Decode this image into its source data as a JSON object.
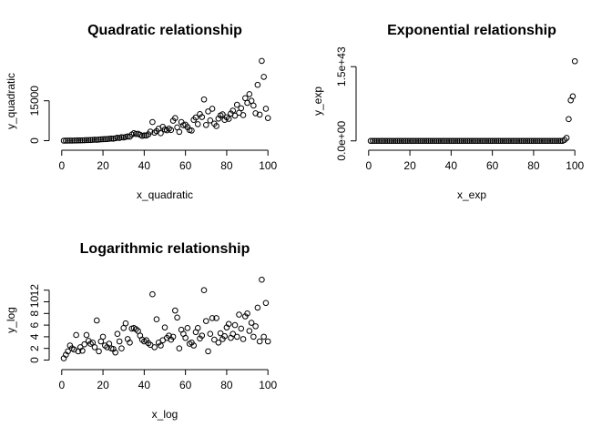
{
  "chart_data": [
    {
      "type": "scatter",
      "title": "Quadratic relationship",
      "xlabel": "x_quadratic",
      "ylabel": "y_quadratic",
      "x": [
        1,
        2,
        3,
        4,
        5,
        6,
        7,
        8,
        9,
        10,
        11,
        12,
        13,
        14,
        15,
        16,
        17,
        18,
        19,
        20,
        21,
        22,
        23,
        24,
        25,
        26,
        27,
        28,
        29,
        30,
        31,
        32,
        33,
        34,
        35,
        36,
        37,
        38,
        39,
        40,
        41,
        42,
        43,
        44,
        45,
        46,
        47,
        48,
        49,
        50,
        51,
        52,
        53,
        54,
        55,
        56,
        57,
        58,
        59,
        60,
        61,
        62,
        63,
        64,
        65,
        66,
        67,
        68,
        69,
        70,
        71,
        72,
        73,
        74,
        75,
        76,
        77,
        78,
        79,
        80,
        81,
        82,
        83,
        84,
        85,
        86,
        87,
        88,
        89,
        90,
        91,
        92,
        93,
        94,
        95,
        96,
        97,
        98,
        99,
        100
      ],
      "values": [
        1,
        5,
        12,
        20,
        30,
        40,
        60,
        90,
        100,
        130,
        150,
        200,
        210,
        250,
        300,
        350,
        330,
        420,
        500,
        520,
        560,
        600,
        700,
        800,
        750,
        900,
        1100,
        1000,
        1300,
        1200,
        1400,
        1600,
        1500,
        2300,
        2800,
        2500,
        2600,
        2200,
        1800,
        2000,
        1900,
        2400,
        3400,
        7000,
        3000,
        3600,
        4500,
        2800,
        5200,
        4200,
        3900,
        4500,
        4000,
        7500,
        8500,
        5000,
        3300,
        7000,
        5800,
        6000,
        5100,
        4000,
        3800,
        7800,
        8700,
        6200,
        10000,
        8900,
        15500,
        5900,
        11000,
        7600,
        12000,
        6400,
        5500,
        8300,
        9500,
        9900,
        7800,
        8800,
        8200,
        10200,
        11300,
        9400,
        13500,
        10500,
        12200,
        9600,
        16000,
        14200,
        17500,
        15000,
        13200,
        10300,
        21000,
        9800,
        30000,
        24000,
        12000,
        8500
      ],
      "xlim": [
        -3,
        103
      ],
      "ylim": [
        -1200,
        31000
      ],
      "xticks": [
        0,
        20,
        40,
        60,
        80,
        100
      ],
      "yticks": [
        0,
        15000
      ]
    },
    {
      "type": "scatter",
      "title": "Exponential relationship",
      "xlabel": "x_exp",
      "ylabel": "y_exp",
      "x": [
        1,
        2,
        3,
        4,
        5,
        6,
        7,
        8,
        9,
        10,
        11,
        12,
        13,
        14,
        15,
        16,
        17,
        18,
        19,
        20,
        21,
        22,
        23,
        24,
        25,
        26,
        27,
        28,
        29,
        30,
        31,
        32,
        33,
        34,
        35,
        36,
        37,
        38,
        39,
        40,
        41,
        42,
        43,
        44,
        45,
        46,
        47,
        48,
        49,
        50,
        51,
        52,
        53,
        54,
        55,
        56,
        57,
        58,
        59,
        60,
        61,
        62,
        63,
        64,
        65,
        66,
        67,
        68,
        69,
        70,
        71,
        72,
        73,
        74,
        75,
        76,
        77,
        78,
        79,
        80,
        81,
        82,
        83,
        84,
        85,
        86,
        87,
        88,
        89,
        90,
        91,
        92,
        93,
        94,
        95,
        96,
        97,
        98,
        99,
        100
      ],
      "values": [
        0,
        0,
        0,
        0,
        0,
        0,
        0,
        0,
        0,
        0,
        0,
        0,
        0,
        0,
        0,
        0,
        0,
        0,
        0,
        0,
        0,
        0,
        0,
        0,
        0,
        0,
        0,
        0,
        0,
        0,
        0,
        0,
        0,
        0,
        0,
        0,
        0,
        0,
        0,
        0,
        0,
        0,
        0,
        0,
        0,
        0,
        0,
        0,
        0,
        0,
        0,
        0,
        0,
        0,
        0,
        0,
        0,
        0,
        0,
        0,
        0,
        0,
        0,
        0,
        0,
        0,
        0,
        0,
        0,
        0,
        0,
        0,
        0,
        0,
        0,
        0,
        0,
        0,
        0,
        0,
        0,
        0,
        0,
        0,
        0,
        0,
        0,
        0,
        0,
        0,
        0,
        0,
        0,
        0,
        2e+41,
        6e+41,
        4.4e+42,
        8.2e+42,
        9e+42,
        1.61e+43
      ],
      "xlim": [
        -3,
        103
      ],
      "ylim": [
        -6e+41,
        1.67e+43
      ],
      "xticks": [
        0,
        20,
        40,
        60,
        80,
        100
      ],
      "yticks": [
        {
          "value": 0,
          "label": "0.0e+00"
        },
        {
          "value": 1.5e+43,
          "label": "1.5e+43"
        }
      ]
    },
    {
      "type": "scatter",
      "title": "Logarithmic relationship",
      "xlabel": "x_log",
      "ylabel": "y_log",
      "x": [
        1,
        2,
        3,
        4,
        5,
        6,
        7,
        8,
        9,
        10,
        11,
        12,
        13,
        14,
        15,
        16,
        17,
        18,
        19,
        20,
        21,
        22,
        23,
        24,
        25,
        26,
        27,
        28,
        29,
        30,
        31,
        32,
        33,
        34,
        35,
        36,
        37,
        38,
        39,
        40,
        41,
        42,
        43,
        44,
        45,
        46,
        47,
        48,
        49,
        50,
        51,
        52,
        53,
        54,
        55,
        56,
        57,
        58,
        59,
        60,
        61,
        62,
        63,
        64,
        65,
        66,
        67,
        68,
        69,
        70,
        71,
        72,
        73,
        74,
        75,
        76,
        77,
        78,
        79,
        80,
        81,
        82,
        83,
        84,
        85,
        86,
        87,
        88,
        89,
        90,
        91,
        92,
        93,
        94,
        95,
        96,
        97,
        98,
        99,
        100
      ],
      "values": [
        0.3,
        0.9,
        1.5,
        2.5,
        2.0,
        1.8,
        4.3,
        1.5,
        2.2,
        1.6,
        2.7,
        4.3,
        3.3,
        2.8,
        3.0,
        2.2,
        6.8,
        1.5,
        3.2,
        4.0,
        2.5,
        2.2,
        2.8,
        2.0,
        1.9,
        1.3,
        4.5,
        3.2,
        2.0,
        5.5,
        6.3,
        3.6,
        3.0,
        5.4,
        5.5,
        5.3,
        5.0,
        4.2,
        3.5,
        3.2,
        3.4,
        2.9,
        2.6,
        11.3,
        2.2,
        7.0,
        3.0,
        2.5,
        3.4,
        5.6,
        3.8,
        4.2,
        3.5,
        4.0,
        8.5,
        7.3,
        2.0,
        5.2,
        4.5,
        3.8,
        5.5,
        2.8,
        3.0,
        2.5,
        4.8,
        5.5,
        3.7,
        4.2,
        12.0,
        6.7,
        1.5,
        4.5,
        7.2,
        3.5,
        7.2,
        3.0,
        4.6,
        3.6,
        4.1,
        5.6,
        6.2,
        3.8,
        4.5,
        6.0,
        4.0,
        7.8,
        5.4,
        3.6,
        7.5,
        8.0,
        5.0,
        6.4,
        4.0,
        5.8,
        9.0,
        3.2,
        13.8,
        4.0,
        9.8,
        3.2
      ],
      "xlim": [
        -3,
        103
      ],
      "ylim": [
        -0.55,
        14.3
      ],
      "xticks": [
        0,
        20,
        40,
        60,
        80,
        100
      ],
      "yticks": [
        0,
        2,
        4,
        6,
        8,
        10,
        12
      ]
    }
  ]
}
